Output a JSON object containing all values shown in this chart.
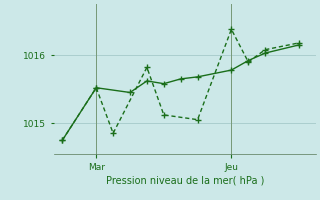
{
  "bg_color": "#cce8e8",
  "grid_color": "#aacece",
  "line_color": "#1a6e1a",
  "marker_color": "#1a6e1a",
  "xlabel": "Pression niveau de la mer( hPa )",
  "ylim": [
    1014.55,
    1016.75
  ],
  "yticks": [
    1015.0,
    1016.0
  ],
  "x_mar": 2,
  "x_jeu": 10,
  "line1_x": [
    0,
    2,
    4,
    5,
    6,
    7,
    8,
    10,
    11,
    12,
    14
  ],
  "line1_y": [
    1014.75,
    1015.52,
    1015.45,
    1015.62,
    1015.58,
    1015.65,
    1015.68,
    1015.78,
    1015.92,
    1016.03,
    1016.15
  ],
  "line2_x": [
    0,
    2,
    3,
    5,
    6,
    8,
    10,
    11,
    12,
    14
  ],
  "line2_y": [
    1014.75,
    1015.52,
    1014.85,
    1015.82,
    1015.12,
    1015.05,
    1016.38,
    1015.9,
    1016.08,
    1016.18
  ],
  "marker_size": 5,
  "linewidth": 1.0,
  "figsize": [
    3.2,
    2.0
  ],
  "dpi": 100,
  "xlim": [
    -0.5,
    15
  ],
  "xtick_mar_pos": 2,
  "xtick_jeu_pos": 10
}
